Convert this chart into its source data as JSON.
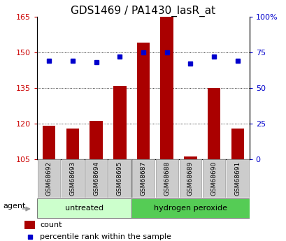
{
  "title": "GDS1469 / PA1430_lasR_at",
  "samples": [
    "GSM68692",
    "GSM68693",
    "GSM68694",
    "GSM68695",
    "GSM68687",
    "GSM68688",
    "GSM68689",
    "GSM68690",
    "GSM68691"
  ],
  "counts": [
    119,
    118,
    121,
    136,
    154,
    165,
    106,
    135,
    118
  ],
  "percentiles": [
    69,
    69,
    68,
    72,
    75,
    75,
    67,
    72,
    69
  ],
  "ylim_left": [
    105,
    165
  ],
  "ylim_right": [
    0,
    100
  ],
  "yticks_left": [
    105,
    120,
    135,
    150,
    165
  ],
  "yticks_right": [
    0,
    25,
    50,
    75,
    100
  ],
  "ytick_labels_right": [
    "0",
    "25",
    "50",
    "75",
    "100%"
  ],
  "bar_color": "#aa0000",
  "dot_color": "#0000cc",
  "bar_width": 0.55,
  "grid_yticks": [
    120,
    135,
    150
  ],
  "group_colors_untreated": "#ccffcc",
  "group_colors_hp": "#55cc55",
  "tick_color_left": "#cc0000",
  "tick_color_right": "#0000cc",
  "xlabel_area_color": "#cccccc",
  "agent_label": "agent",
  "legend_count_label": "count",
  "legend_pct_label": "percentile rank within the sample",
  "title_fontsize": 11,
  "tick_fontsize": 8,
  "sample_fontsize": 6.5,
  "group_fontsize": 8,
  "legend_fontsize": 8,
  "n_untreated": 4,
  "n_hp": 5
}
